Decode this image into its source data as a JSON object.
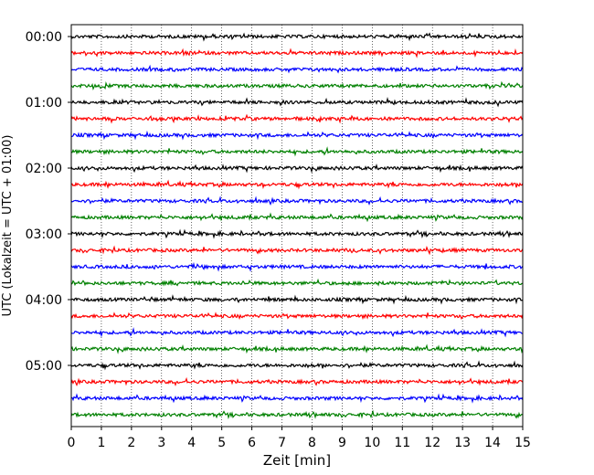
{
  "chart_data": {
    "type": "line",
    "title": "",
    "xlabel": "Zeit  [min]",
    "ylabel": "UTC (Lokalzeit = UTC + 01:00)",
    "xlim": [
      0,
      15
    ],
    "x_ticks": [
      0,
      1,
      2,
      3,
      4,
      5,
      6,
      7,
      8,
      9,
      10,
      11,
      12,
      13,
      14,
      15
    ],
    "y_tick_labels": [
      "00:00",
      "01:00",
      "02:00",
      "03:00",
      "04:00",
      "05:00"
    ],
    "trace_count": 24,
    "trace_interval_minutes": 15,
    "trace_colors": [
      "#000000",
      "#ff0000",
      "#0000ff",
      "#008000"
    ],
    "vertical_grid": "dotted",
    "legend": "none"
  }
}
